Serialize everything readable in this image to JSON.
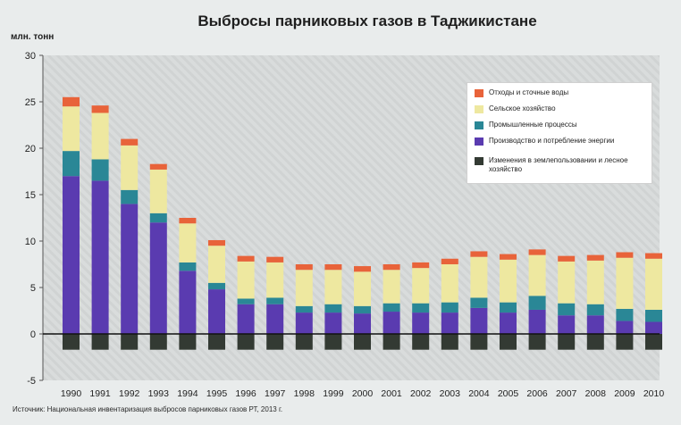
{
  "title": "Выбросы парниковых газов в Таджикистане",
  "unit_label": "млн. тонн",
  "source": "Источник: Национальная инвентаризация выбросов парниковых газов РТ, 2013 г.",
  "colors": {
    "waste": "#e8633a",
    "agriculture": "#eee8a0",
    "industry": "#2a8796",
    "energy": "#5a3bb0",
    "land_use": "#333a33",
    "plot_bg": "#d9dcdc",
    "stripe": "#c9cccc"
  },
  "chart_data": {
    "type": "bar",
    "stacked": true,
    "ylim": [
      -5,
      30
    ],
    "yticks": [
      -5,
      0,
      5,
      10,
      15,
      20,
      25,
      30
    ],
    "grid": false,
    "legend_position": "top-right",
    "ylabel": "млн. тонн",
    "categories": [
      "1990",
      "1991",
      "1992",
      "1993",
      "1994",
      "1995",
      "1996",
      "1997",
      "1998",
      "1999",
      "2000",
      "2001",
      "2002",
      "2003",
      "2004",
      "2005",
      "2006",
      "2007",
      "2008",
      "2009",
      "2010"
    ],
    "series": [
      {
        "key": "land_use",
        "name": "Изменения в землепользовании и лесное хозяйство",
        "values": [
          -1.7,
          -1.7,
          -1.7,
          -1.7,
          -1.7,
          -1.7,
          -1.7,
          -1.7,
          -1.7,
          -1.7,
          -1.7,
          -1.7,
          -1.7,
          -1.7,
          -1.7,
          -1.7,
          -1.7,
          -1.7,
          -1.7,
          -1.7,
          -1.7
        ]
      },
      {
        "key": "energy",
        "name": "Производство и потребление энергии",
        "values": [
          17.0,
          16.5,
          14.0,
          12.0,
          6.8,
          4.8,
          3.2,
          3.2,
          2.3,
          2.3,
          2.2,
          2.4,
          2.3,
          2.3,
          2.8,
          2.3,
          2.6,
          2.0,
          2.0,
          1.4,
          1.3
        ]
      },
      {
        "key": "industry",
        "name": "Промышленные процессы",
        "values": [
          2.7,
          2.3,
          1.5,
          1.0,
          0.9,
          0.7,
          0.6,
          0.7,
          0.7,
          0.9,
          0.8,
          0.9,
          1.0,
          1.1,
          1.1,
          1.1,
          1.5,
          1.3,
          1.2,
          1.3,
          1.3
        ]
      },
      {
        "key": "agriculture",
        "name": "Сельское хозяйство",
        "values": [
          4.8,
          5.0,
          4.8,
          4.7,
          4.2,
          4.0,
          4.0,
          3.8,
          3.9,
          3.7,
          3.7,
          3.6,
          3.8,
          4.1,
          4.4,
          4.6,
          4.4,
          4.5,
          4.7,
          5.5,
          5.5
        ]
      },
      {
        "key": "waste",
        "name": "Отходы и сточные воды",
        "values": [
          1.0,
          0.8,
          0.7,
          0.6,
          0.6,
          0.6,
          0.6,
          0.6,
          0.6,
          0.6,
          0.6,
          0.6,
          0.6,
          0.6,
          0.6,
          0.6,
          0.6,
          0.6,
          0.6,
          0.6,
          0.6
        ]
      }
    ],
    "legend_order": [
      "waste",
      "agriculture",
      "industry",
      "energy",
      "land_use"
    ]
  }
}
